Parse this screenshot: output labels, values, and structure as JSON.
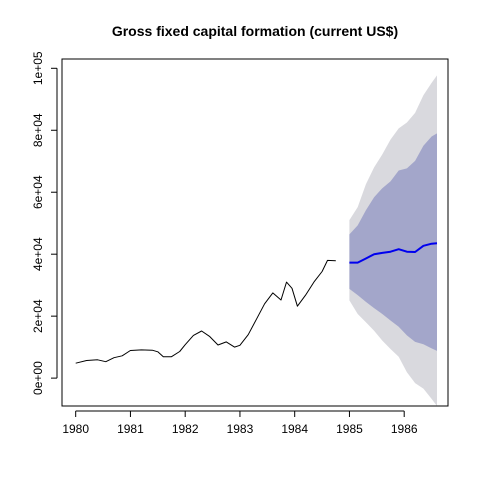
{
  "chart_data": {
    "type": "line",
    "title": "Gross fixed capital formation (current US$)",
    "xlabel": "",
    "ylabel": "",
    "xlim": [
      1979.75,
      1986.8
    ],
    "ylim": [
      -9000,
      103000
    ],
    "x_ticks": [
      1980,
      1981,
      1982,
      1983,
      1984,
      1985,
      1986
    ],
    "x_tick_labels": [
      "1980",
      "1981",
      "1982",
      "1983",
      "1984",
      "1985",
      "1986"
    ],
    "y_ticks": [
      0,
      20000,
      40000,
      60000,
      80000,
      100000
    ],
    "y_tick_labels": [
      "0e+00",
      "2e+04",
      "4e+04",
      "6e+04",
      "8e+04",
      "1e+05"
    ],
    "series": [
      {
        "x": [
          1980.0,
          1980.2,
          1980.4,
          1980.55,
          1980.7,
          1980.85,
          1981.0,
          1981.2,
          1981.4,
          1981.5,
          1981.6,
          1981.75,
          1981.9,
          1982.0,
          1982.15,
          1982.3,
          1982.45,
          1982.6,
          1982.75,
          1982.9,
          1983.0,
          1983.15,
          1983.3,
          1983.45,
          1983.6,
          1983.75,
          1983.85,
          1983.95,
          1984.05,
          1984.2,
          1984.35,
          1984.5,
          1984.6,
          1984.75
        ],
        "values": [
          4800,
          5700,
          5900,
          5300,
          6600,
          7200,
          8900,
          9100,
          9000,
          8500,
          6900,
          6900,
          8600,
          10800,
          13800,
          15200,
          13400,
          10700,
          11700,
          10000,
          10600,
          14000,
          19000,
          24000,
          27500,
          25200,
          31000,
          29000,
          23200,
          26800,
          31000,
          34400,
          38000,
          37900
        ],
        "color": "#000000"
      }
    ],
    "forecast": {
      "x": [
        1985.0,
        1985.15,
        1985.3,
        1985.45,
        1985.6,
        1985.75,
        1985.9,
        1986.05,
        1986.2,
        1986.35,
        1986.5,
        1986.6
      ],
      "mean": [
        37300,
        37300,
        38600,
        40000,
        40400,
        40800,
        41600,
        40800,
        40700,
        42700,
        43400,
        43500
      ],
      "lo80": [
        28800,
        26800,
        24600,
        22600,
        20700,
        18600,
        16600,
        13800,
        11700,
        10900,
        9600,
        8800
      ],
      "hi80": [
        46400,
        49300,
        54200,
        58400,
        61300,
        63500,
        67000,
        67700,
        70100,
        75000,
        78000,
        79000
      ],
      "lo95": [
        25100,
        20700,
        18000,
        15300,
        12100,
        9400,
        6900,
        1900,
        -1600,
        -3400,
        -6700,
        -9000
      ],
      "hi95": [
        51000,
        55200,
        62600,
        68000,
        72200,
        77000,
        80600,
        82500,
        85600,
        91300,
        95300,
        97700
      ],
      "mean_color": "#0000ee",
      "band80_color": "#a3a6ca",
      "band95_color": "#d9d9de"
    }
  }
}
